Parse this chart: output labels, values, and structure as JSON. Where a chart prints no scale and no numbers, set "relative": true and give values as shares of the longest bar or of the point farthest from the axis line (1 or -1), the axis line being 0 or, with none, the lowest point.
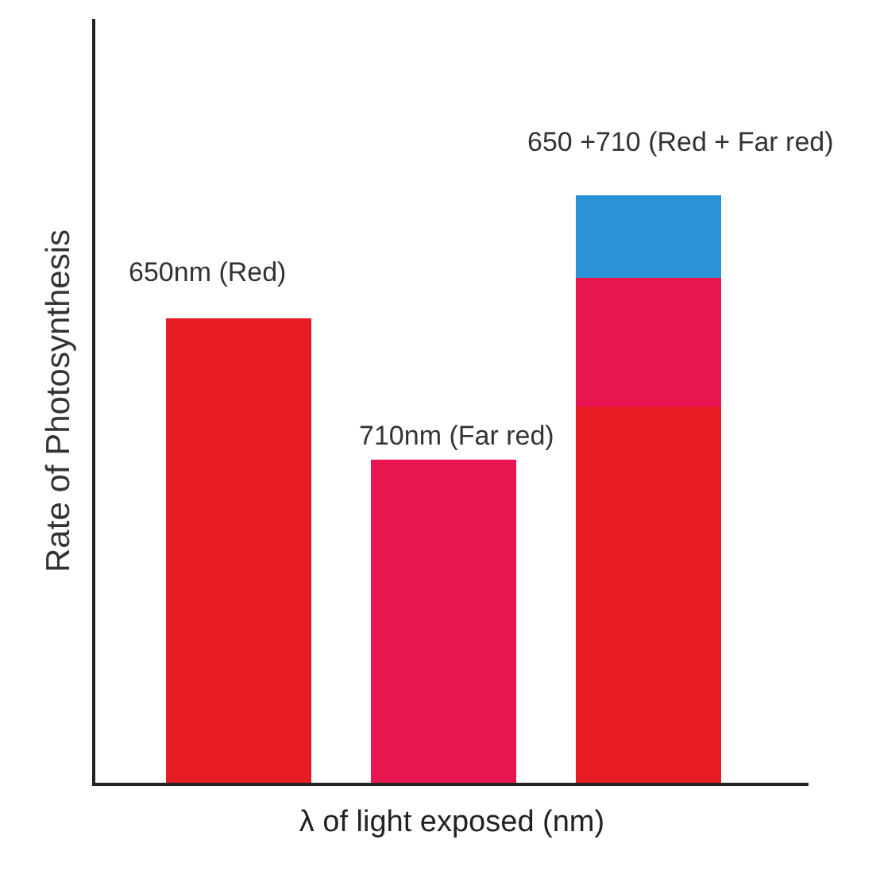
{
  "chart_data": {
    "type": "bar",
    "relative": true,
    "stacked": true,
    "xlabel": "λ of light exposed (nm)",
    "ylabel": "Rate of Photosynthesis",
    "categories": [
      null,
      null,
      null
    ],
    "series": [
      {
        "color": "#e81c24",
        "values": [
          0.79,
          null,
          0.64
        ]
      },
      {
        "color": "#e81650",
        "values": [
          null,
          0.55,
          0.22
        ]
      },
      {
        "color": "#2a93d5",
        "values": [
          null,
          null,
          0.14
        ]
      }
    ],
    "annotations": [
      {
        "text": "650nm (Red)",
        "y": 0.79
      },
      {
        "text": "710nm (Far red)",
        "y": 0.55
      },
      {
        "text": "650 +710 (Red + Far red)",
        "y": 1.0
      }
    ]
  }
}
